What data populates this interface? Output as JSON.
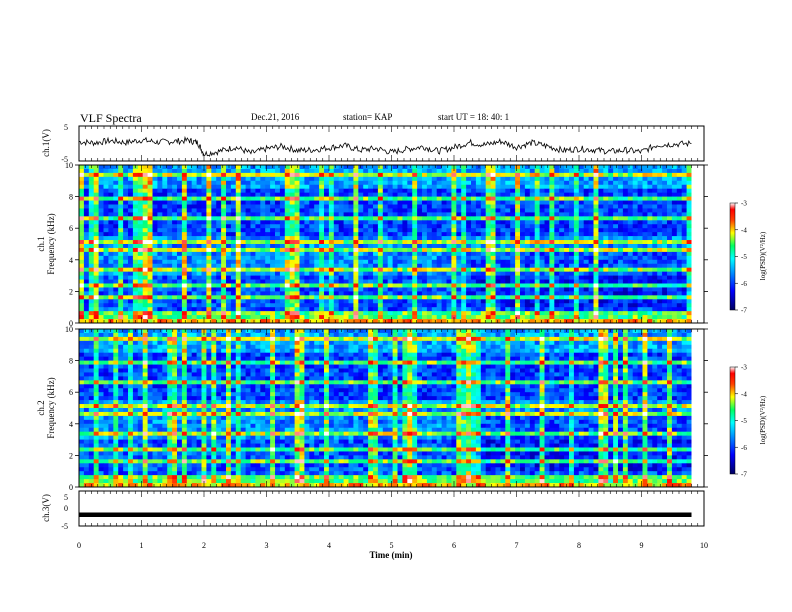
{
  "header": {
    "title": "VLF Spectra",
    "date": "Dec.21, 2016",
    "station": "station= KAP",
    "start": "start  UT =   18: 40: 1"
  },
  "colors": {
    "spectrogram_stops": [
      "#00007a",
      "#0000ff",
      "#0080ff",
      "#00ffff",
      "#00ff80",
      "#ffff00",
      "#ff8000",
      "#ff0000",
      "#ffffff"
    ]
  },
  "chart_data": [
    {
      "type": "line",
      "panel": "ch1-waveform",
      "ylabel": "ch.1(V)",
      "ylim": [
        -5,
        5
      ],
      "yticks": [
        "5",
        "-5"
      ],
      "xlim": [
        0,
        9.8
      ],
      "x": [
        0,
        0.25,
        0.5,
        0.75,
        1.0,
        1.25,
        1.5,
        1.75,
        1.9,
        2.0,
        2.25,
        2.5,
        2.75,
        3.0,
        3.25,
        3.5,
        3.75,
        4.0,
        4.25,
        4.5,
        4.75,
        5.0,
        5.25,
        5.5,
        5.75,
        6.0,
        6.25,
        6.5,
        6.75,
        7.0,
        7.25,
        7.5,
        7.75,
        8.0,
        8.25,
        8.5,
        8.75,
        9.0,
        9.25,
        9.5,
        9.8
      ],
      "values": [
        0.5,
        0.2,
        0.8,
        0.3,
        1.0,
        0.4,
        0.6,
        0.9,
        0.2,
        -3.0,
        -2.2,
        -1.0,
        -2.8,
        -1.5,
        -0.8,
        -2.0,
        -1.8,
        -1.2,
        -0.6,
        -1.9,
        -1.4,
        -2.5,
        -1.6,
        -0.9,
        -2.2,
        -1.1,
        0.3,
        -0.4,
        0.6,
        -1.0,
        0.2,
        -0.8,
        -2.0,
        -1.5,
        -1.8,
        -2.3,
        -1.9,
        -2.4,
        -0.4,
        -0.2,
        0.0
      ]
    },
    {
      "type": "heatmap",
      "panel": "ch1-spectrogram",
      "ylabel": "Frequency (kHz)",
      "channel_label": "ch.1",
      "ylim": [
        0,
        10
      ],
      "yticks": [
        "0",
        "2",
        "4",
        "6",
        "8",
        "10"
      ],
      "xlim": [
        0,
        9.8
      ],
      "colorbar": {
        "label": "log(PSD)(V²/Hz)",
        "range": [
          -7,
          -3
        ],
        "ticks": [
          "-3",
          "-4",
          "-5",
          "-6",
          "-7"
        ]
      }
    },
    {
      "type": "heatmap",
      "panel": "ch2-spectrogram",
      "ylabel": "Frequency (kHz)",
      "channel_label": "ch.2",
      "ylim": [
        0,
        10
      ],
      "yticks": [
        "0",
        "2",
        "4",
        "6",
        "8",
        "10"
      ],
      "xlim": [
        0,
        9.8
      ],
      "colorbar": {
        "label": "log(PSD)(V²/Hz)",
        "range": [
          -7,
          -3
        ],
        "ticks": [
          "-3",
          "-4",
          "-5",
          "-6",
          "-7"
        ]
      }
    },
    {
      "type": "line",
      "panel": "ch3-waveform",
      "ylabel": "ch.3(V)",
      "ylim": [
        -5,
        5
      ],
      "yticks": [
        "5",
        "0",
        "-5"
      ],
      "xlim": [
        0,
        9.8
      ],
      "x": [
        0,
        9.8
      ],
      "values": [
        -1.8,
        -1.8
      ]
    }
  ],
  "xaxis": {
    "label": "Time  (min)",
    "range": [
      0,
      10
    ],
    "ticks": [
      "0",
      "1",
      "2",
      "3",
      "4",
      "5",
      "6",
      "7",
      "8",
      "9",
      "10"
    ]
  }
}
